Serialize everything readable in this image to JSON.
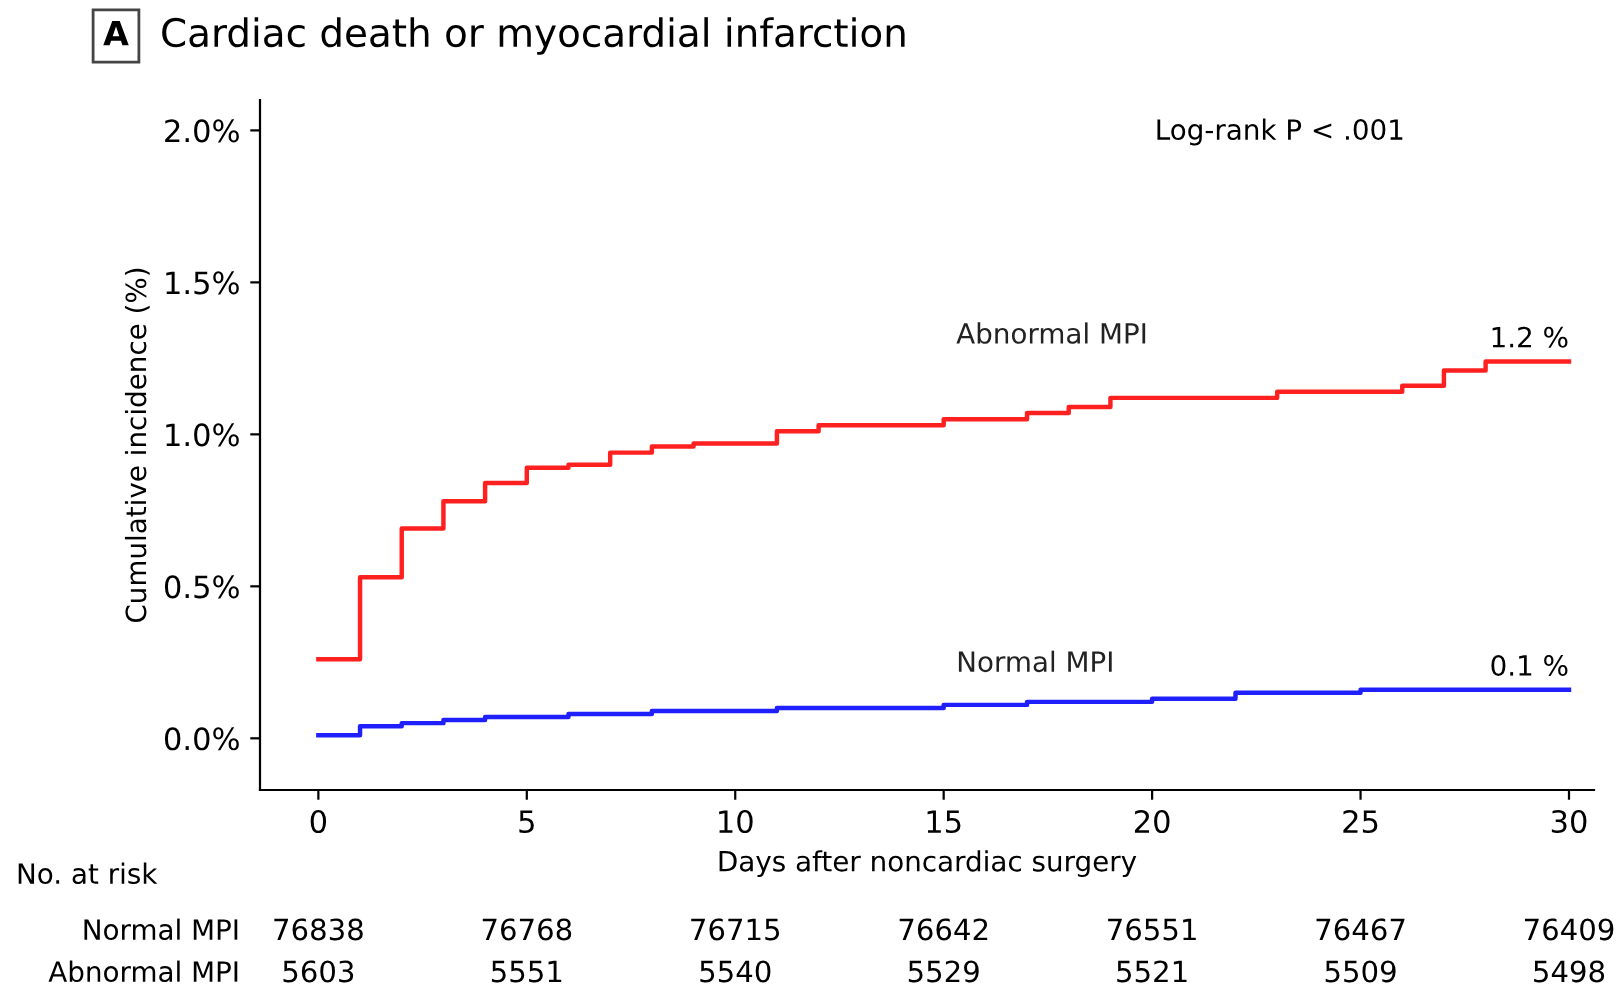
{
  "chart_data": {
    "type": "step",
    "title": "Cardiac death or myocardial infarction",
    "xlabel": "Days after noncardiac surgery",
    "ylabel": "Cumulative incidence (%)",
    "series": [
      {
        "name": "Abnormal MPI",
        "color": "#ff2020",
        "x": [
          0,
          1,
          2,
          3,
          4,
          5,
          6,
          7,
          8,
          9,
          11,
          12,
          15,
          17,
          18,
          19,
          23,
          26,
          27,
          28,
          30
        ],
        "values": [
          0.26,
          0.53,
          0.69,
          0.78,
          0.84,
          0.89,
          0.9,
          0.94,
          0.96,
          0.97,
          1.01,
          1.03,
          1.05,
          1.07,
          1.09,
          1.12,
          1.14,
          1.16,
          1.21,
          1.24,
          1.24
        ]
      },
      {
        "name": "Normal MPI",
        "color": "#2020ff",
        "x": [
          0,
          1,
          2,
          3,
          4,
          6,
          8,
          9,
          11,
          13,
          15,
          17,
          20,
          22,
          25,
          28,
          30
        ],
        "values": [
          0.01,
          0.04,
          0.05,
          0.06,
          0.07,
          0.08,
          0.09,
          0.09,
          0.1,
          0.1,
          0.11,
          0.12,
          0.13,
          0.15,
          0.16,
          0.16,
          0.16
        ]
      }
    ],
    "xlim": [
      -1.4,
      30.6
    ],
    "xticks": [
      0,
      5,
      10,
      15,
      20,
      25,
      30
    ],
    "ylim": [
      -0.17,
      2.1
    ],
    "yticks": [
      {
        "value": 0,
        "label": "0.0%"
      },
      {
        "value": 0.5,
        "label": "0.5%"
      },
      {
        "value": 1,
        "label": "1.0%"
      },
      {
        "value": 1.5,
        "label": "1.5%"
      },
      {
        "value": 2,
        "label": "2.0%"
      }
    ],
    "grid": false,
    "legend": false,
    "annotations": [
      {
        "text": "1.2 %",
        "x": 30,
        "y": 1.24
      },
      {
        "text": "0.1 %",
        "x": 30,
        "y": 0.16
      },
      "Log-rank P < .001",
      "A",
      "No. at risk",
      "Normal MPI",
      "76838",
      "76768",
      "76715",
      "76642",
      "76551",
      "76467",
      "76409",
      "Abnormal MPI",
      "5603",
      "5551",
      "5540",
      "5529",
      "5521",
      "5509",
      "5498"
    ]
  }
}
